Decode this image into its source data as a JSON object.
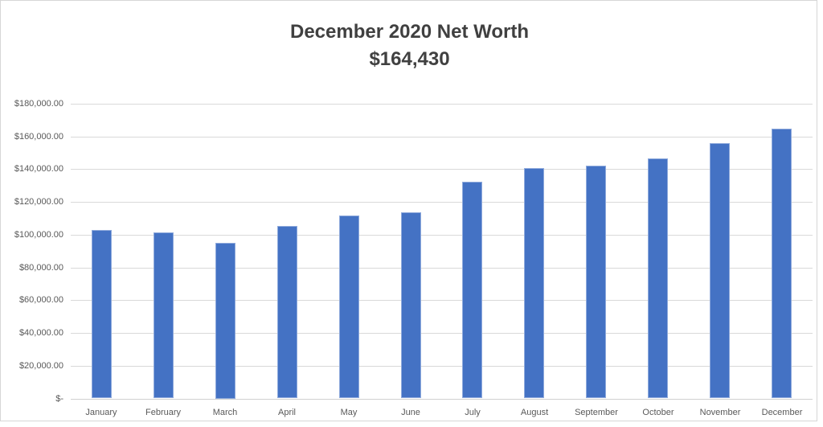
{
  "chart_data": {
    "type": "bar",
    "title": "December 2020 Net Worth",
    "subtitle": "$164,430",
    "categories": [
      "January",
      "February",
      "March",
      "April",
      "May",
      "June",
      "July",
      "August",
      "September",
      "October",
      "November",
      "December"
    ],
    "values": [
      103000,
      101500,
      95000,
      105200,
      111700,
      113700,
      132300,
      140500,
      142000,
      146600,
      156000,
      164430
    ],
    "xlabel": "",
    "ylabel": "",
    "ylim": [
      0,
      180000
    ],
    "ytick_step": 20000,
    "ytick_labels": [
      "$-",
      "$20,000.00",
      "$40,000.00",
      "$60,000.00",
      "$80,000.00",
      "$100,000.00",
      "$120,000.00",
      "$140,000.00",
      "$160,000.00",
      "$180,000.00"
    ],
    "grid": true,
    "legend": false,
    "bar_color": "#4472C4",
    "bar_border_color": "#8FAADC",
    "gridline_color": "#D9D9D9",
    "frame_border_color": "#D6D6D6",
    "title_color": "#404040",
    "tick_label_color": "#595959"
  }
}
